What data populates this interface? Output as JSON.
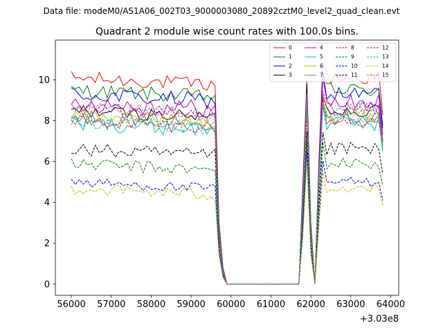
{
  "header": {
    "data_file": "Data file: modeM0/AS1A06_002T03_9000003080_20892cztM0_level2_quad_clean.evt"
  },
  "chart_data": {
    "type": "line",
    "title": "Quadrant 2 module wise count rates with 100.0s bins.",
    "xlabel": "",
    "ylabel": "",
    "x_offset_label": "+3.03e8",
    "xlim": [
      55600,
      64200
    ],
    "ylim": [
      -0.55,
      11.95
    ],
    "x_ticks": [
      56000,
      57000,
      58000,
      59000,
      60000,
      61000,
      62000,
      63000,
      64000
    ],
    "x_tick_labels": [
      "56000",
      "57000",
      "58000",
      "59000",
      "60000",
      "61000",
      "62000",
      "63000",
      "64000"
    ],
    "y_ticks": [
      0,
      2,
      4,
      6,
      8,
      10
    ],
    "y_tick_labels": [
      "0",
      "2",
      "4",
      "6",
      "8",
      "10"
    ],
    "grid": false,
    "legend_position": "top-right",
    "segments": [
      {
        "start": 56000,
        "end": 59600,
        "step": 100
      },
      {
        "start": 62300,
        "end": 63800,
        "step": 100
      }
    ],
    "gap_x": [
      59700,
      59800,
      59900,
      60000,
      61700,
      61800,
      61900,
      62000,
      62100,
      62200
    ],
    "series": [
      {
        "name": "0",
        "color": "#ff0000",
        "dash": "solid",
        "base": 10.1,
        "var": 0.35,
        "gap": [
          3.0,
          0.8,
          0.0,
          0.0,
          0.0,
          5.0,
          10.0,
          3.0,
          0.0,
          6.0
        ]
      },
      {
        "name": "1",
        "color": "#008000",
        "dash": "solid",
        "base": 9.5,
        "var": 0.35,
        "gap": [
          2.8,
          0.7,
          0.0,
          0.0,
          0.0,
          4.8,
          9.5,
          3.0,
          0.0,
          5.8
        ]
      },
      {
        "name": "2",
        "color": "#0000ff",
        "dash": "solid",
        "base": 9.3,
        "var": 0.4,
        "gap": [
          2.7,
          0.7,
          0.0,
          0.0,
          0.0,
          4.7,
          9.6,
          2.8,
          0.0,
          5.6
        ]
      },
      {
        "name": "3",
        "color": "#000000",
        "dash": "solid",
        "base": 8.5,
        "var": 0.3,
        "gap": [
          2.5,
          0.6,
          0.0,
          0.0,
          0.0,
          4.4,
          9.8,
          2.6,
          0.0,
          5.2
        ]
      },
      {
        "name": "4",
        "color": "#bf00bf",
        "dash": "solid",
        "base": 8.9,
        "var": 0.45,
        "gap": [
          2.6,
          0.7,
          0.0,
          0.0,
          0.0,
          4.5,
          9.4,
          2.7,
          0.0,
          5.4
        ]
      },
      {
        "name": "5",
        "color": "#00bfbf",
        "dash": "solid",
        "base": 7.9,
        "var": 0.4,
        "gap": [
          2.3,
          0.6,
          0.0,
          0.0,
          0.0,
          4.0,
          9.3,
          2.4,
          0.0,
          4.9
        ]
      },
      {
        "name": "6",
        "color": "#bfbf00",
        "dash": "solid",
        "base": 8.3,
        "var": 0.35,
        "gap": [
          2.4,
          0.6,
          0.0,
          0.0,
          0.0,
          4.2,
          9.1,
          2.5,
          0.0,
          5.0
        ]
      },
      {
        "name": "7",
        "color": "#808080",
        "dash": "solid",
        "base": 8.2,
        "var": 0.35,
        "gap": [
          2.4,
          0.6,
          0.0,
          0.0,
          0.0,
          4.1,
          9.0,
          2.5,
          0.0,
          5.0
        ]
      },
      {
        "name": "8",
        "color": "#ff0000",
        "dash": "dashed",
        "base": 8.0,
        "var": 0.3,
        "gap": [
          2.3,
          0.6,
          0.0,
          0.0,
          0.0,
          4.0,
          8.3,
          2.4,
          0.0,
          4.8
        ]
      },
      {
        "name": "9",
        "color": "#008000",
        "dash": "dashed",
        "base": 5.9,
        "var": 0.3,
        "gap": [
          1.7,
          0.4,
          0.0,
          0.0,
          0.0,
          3.0,
          7.0,
          1.8,
          0.0,
          3.6
        ]
      },
      {
        "name": "10",
        "color": "#0000ff",
        "dash": "dashed",
        "base": 5.0,
        "var": 0.25,
        "gap": [
          1.5,
          0.4,
          0.0,
          0.0,
          0.0,
          2.6,
          6.5,
          1.5,
          0.0,
          3.0
        ]
      },
      {
        "name": "11",
        "color": "#000000",
        "dash": "dashed",
        "base": 6.6,
        "var": 0.35,
        "gap": [
          1.9,
          0.5,
          0.0,
          0.0,
          0.0,
          3.3,
          7.5,
          2.0,
          0.0,
          4.0
        ]
      },
      {
        "name": "12",
        "color": "#bf00bf",
        "dash": "dashed",
        "base": 8.6,
        "var": 0.35,
        "gap": [
          2.5,
          0.6,
          0.0,
          0.0,
          0.0,
          4.3,
          9.2,
          2.6,
          0.0,
          5.2
        ]
      },
      {
        "name": "13",
        "color": "#00bfbf",
        "dash": "dashed",
        "base": 8.0,
        "var": 0.35,
        "gap": [
          2.3,
          0.6,
          0.0,
          0.0,
          0.0,
          4.0,
          8.8,
          2.4,
          0.0,
          4.9
        ]
      },
      {
        "name": "14",
        "color": "#bfbf00",
        "dash": "dashed",
        "base": 4.7,
        "var": 0.3,
        "gap": [
          1.4,
          0.3,
          0.0,
          0.0,
          0.0,
          2.4,
          6.0,
          1.4,
          0.0,
          2.8
        ]
      },
      {
        "name": "15",
        "color": "#808080",
        "dash": "dashed",
        "base": 8.6,
        "var": 0.35,
        "gap": [
          2.5,
          0.6,
          0.0,
          0.0,
          0.0,
          4.3,
          9.2,
          2.6,
          0.0,
          5.2
        ]
      }
    ]
  }
}
